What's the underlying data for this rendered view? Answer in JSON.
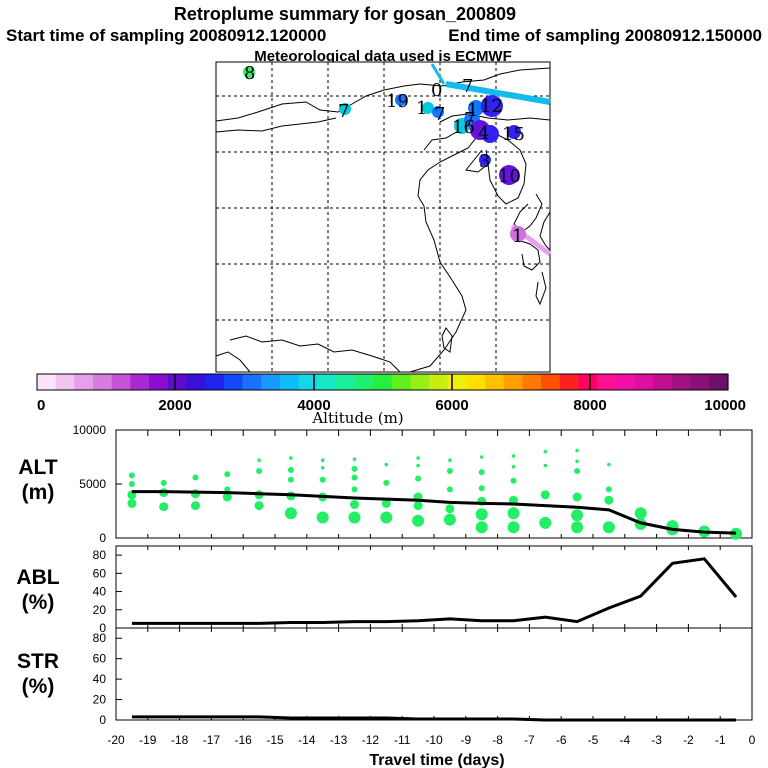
{
  "title": "Retroplume summary for gosan_200809",
  "start_label": "Start time of sampling 20080912.120000",
  "end_label": "End time of sampling 20080912.150000",
  "met_label": "Meteorological data used is ECMWF",
  "colorbar": {
    "ticks": [
      "0",
      "2000",
      "4000",
      "6000",
      "8000",
      "10000"
    ],
    "label": "Altitude (m)",
    "range": [
      0,
      10000
    ]
  },
  "map": {
    "labels": [
      "8",
      "7",
      "19",
      "1",
      "7",
      "12",
      "1",
      "16",
      "7",
      "4",
      "15",
      "3",
      "10",
      "1",
      "0",
      "7"
    ],
    "colors": [
      "#33ee66",
      "#00ccdd",
      "#1177ff",
      "#3322ee",
      "#6611dd",
      "#d070e0"
    ]
  },
  "chart_data": [
    {
      "type": "line",
      "panel": "ALT",
      "ylabel": [
        "ALT",
        "(m)"
      ],
      "xlabel": "Travel time (days)",
      "xlim": [
        -20,
        0
      ],
      "ylim": [
        0,
        10000
      ],
      "yticks": [
        "10000",
        "5000",
        "0"
      ],
      "x": [
        -19.5,
        -18.5,
        -17.5,
        -16.5,
        -15.5,
        -14.5,
        -13.5,
        -12.5,
        -11.5,
        -10.5,
        -9.5,
        -8.5,
        -7.5,
        -6.5,
        -5.5,
        -4.5,
        -3.5,
        -2.5,
        -1.5,
        -0.5
      ],
      "values": [
        4300,
        4300,
        4250,
        4200,
        4100,
        4000,
        3850,
        3700,
        3600,
        3500,
        3300,
        3200,
        3150,
        3000,
        2850,
        2600,
        1400,
        800,
        550,
        450
      ],
      "scatter": [
        {
          "x": -19.5,
          "y": 4000
        },
        {
          "x": -19.5,
          "y": 5000
        },
        {
          "x": -19.5,
          "y": 5800
        },
        {
          "x": -19.5,
          "y": 3200
        },
        {
          "x": -18.5,
          "y": 4200
        },
        {
          "x": -18.5,
          "y": 5100
        },
        {
          "x": -18.5,
          "y": 2900
        },
        {
          "x": -17.5,
          "y": 3000
        },
        {
          "x": -17.5,
          "y": 4100
        },
        {
          "x": -17.5,
          "y": 5600
        },
        {
          "x": -16.5,
          "y": 3800
        },
        {
          "x": -16.5,
          "y": 4500
        },
        {
          "x": -16.5,
          "y": 5900
        },
        {
          "x": -15.5,
          "y": 3000
        },
        {
          "x": -15.5,
          "y": 4000
        },
        {
          "x": -15.5,
          "y": 6200
        },
        {
          "x": -15.5,
          "y": 7200
        },
        {
          "x": -14.5,
          "y": 2300
        },
        {
          "x": -14.5,
          "y": 3900
        },
        {
          "x": -14.5,
          "y": 5400
        },
        {
          "x": -14.5,
          "y": 6300
        },
        {
          "x": -14.5,
          "y": 7400
        },
        {
          "x": -13.5,
          "y": 1900
        },
        {
          "x": -13.5,
          "y": 3800
        },
        {
          "x": -13.5,
          "y": 5400
        },
        {
          "x": -13.5,
          "y": 6500
        },
        {
          "x": -13.5,
          "y": 7200
        },
        {
          "x": -12.5,
          "y": 1900
        },
        {
          "x": -12.5,
          "y": 3100
        },
        {
          "x": -12.5,
          "y": 4500
        },
        {
          "x": -12.5,
          "y": 5600
        },
        {
          "x": -12.5,
          "y": 6400
        },
        {
          "x": -12.5,
          "y": 7300
        },
        {
          "x": -11.5,
          "y": 1900
        },
        {
          "x": -11.5,
          "y": 3200
        },
        {
          "x": -11.5,
          "y": 5100
        },
        {
          "x": -11.5,
          "y": 6800
        },
        {
          "x": -10.5,
          "y": 1600
        },
        {
          "x": -10.5,
          "y": 3000
        },
        {
          "x": -10.5,
          "y": 3800
        },
        {
          "x": -10.5,
          "y": 5500
        },
        {
          "x": -10.5,
          "y": 6700
        },
        {
          "x": -10.5,
          "y": 7400
        },
        {
          "x": -9.5,
          "y": 1700
        },
        {
          "x": -9.5,
          "y": 2700
        },
        {
          "x": -9.5,
          "y": 4500
        },
        {
          "x": -9.5,
          "y": 6200
        },
        {
          "x": -9.5,
          "y": 7200
        },
        {
          "x": -8.5,
          "y": 1000
        },
        {
          "x": -8.5,
          "y": 2200
        },
        {
          "x": -8.5,
          "y": 3400
        },
        {
          "x": -8.5,
          "y": 4600
        },
        {
          "x": -8.5,
          "y": 6100
        },
        {
          "x": -8.5,
          "y": 7500
        },
        {
          "x": -7.5,
          "y": 1000
        },
        {
          "x": -7.5,
          "y": 2300
        },
        {
          "x": -7.5,
          "y": 3500
        },
        {
          "x": -7.5,
          "y": 5300
        },
        {
          "x": -7.5,
          "y": 6600
        },
        {
          "x": -7.5,
          "y": 7600
        },
        {
          "x": -6.5,
          "y": 1400
        },
        {
          "x": -6.5,
          "y": 4000
        },
        {
          "x": -6.5,
          "y": 6700
        },
        {
          "x": -6.5,
          "y": 8000
        },
        {
          "x": -5.5,
          "y": 1000
        },
        {
          "x": -5.5,
          "y": 2100
        },
        {
          "x": -5.5,
          "y": 3800
        },
        {
          "x": -5.5,
          "y": 6200
        },
        {
          "x": -5.5,
          "y": 7100
        },
        {
          "x": -5.5,
          "y": 8100
        },
        {
          "x": -4.5,
          "y": 1000
        },
        {
          "x": -4.5,
          "y": 3500
        },
        {
          "x": -4.5,
          "y": 4500
        },
        {
          "x": -4.5,
          "y": 6800
        },
        {
          "x": -3.5,
          "y": 1300
        },
        {
          "x": -3.5,
          "y": 2300
        },
        {
          "x": -2.5,
          "y": 800
        },
        {
          "x": -2.5,
          "y": 1100
        },
        {
          "x": -1.5,
          "y": 600
        },
        {
          "x": -0.5,
          "y": 400
        }
      ]
    },
    {
      "type": "line",
      "panel": "ABL",
      "ylabel": [
        "ABL",
        "(%)"
      ],
      "xlim": [
        -20,
        0
      ],
      "ylim": [
        0,
        90
      ],
      "yticks": [
        "80",
        "60",
        "40",
        "20",
        "0"
      ],
      "x": [
        -19.5,
        -18.5,
        -17.5,
        -16.5,
        -15.5,
        -14.5,
        -13.5,
        -12.5,
        -11.5,
        -10.5,
        -9.5,
        -8.5,
        -7.5,
        -6.5,
        -5.5,
        -4.5,
        -3.5,
        -2.5,
        -1.5,
        -0.5
      ],
      "values": [
        5,
        5,
        5,
        5,
        5,
        6,
        6,
        7,
        7,
        8,
        10,
        8,
        8,
        12,
        7,
        22,
        35,
        71,
        76,
        34
      ]
    },
    {
      "type": "line",
      "panel": "STR",
      "ylabel": [
        "STR",
        "(%)"
      ],
      "xlim": [
        -20,
        0
      ],
      "ylim": [
        0,
        90
      ],
      "yticks": [
        "80",
        "60",
        "40",
        "20",
        "0"
      ],
      "xticks": [
        "-20",
        "-19",
        "-18",
        "-17",
        "-16",
        "-15",
        "-14",
        "-13",
        "-12",
        "-11",
        "-10",
        "-9",
        "-8",
        "-7",
        "-6",
        "-5",
        "-4",
        "-3",
        "-2",
        "-1",
        "0"
      ],
      "x": [
        -19.5,
        -18.5,
        -17.5,
        -16.5,
        -15.5,
        -14.5,
        -13.5,
        -12.5,
        -11.5,
        -10.5,
        -9.5,
        -8.5,
        -7.5,
        -6.5,
        -5.5,
        -4.5,
        -3.5,
        -2.5,
        -1.5,
        -0.5
      ],
      "values": [
        3,
        3,
        3,
        3,
        3,
        2,
        2,
        2,
        2,
        1,
        1,
        1,
        1,
        0,
        0,
        0,
        0,
        0,
        0,
        0
      ]
    }
  ]
}
